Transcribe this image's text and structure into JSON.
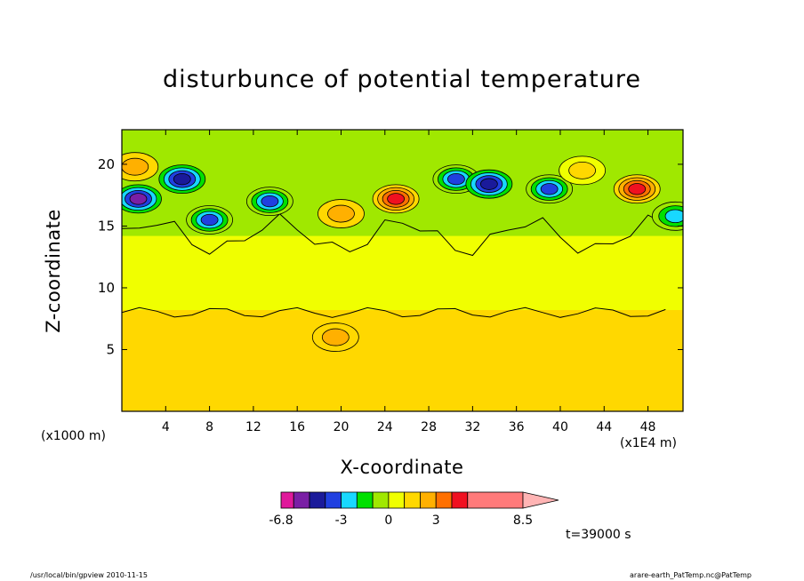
{
  "chart_data": {
    "type": "heatmap",
    "title": "disturbunce of potential temperature",
    "xlabel": "X-coordinate",
    "ylabel": "Z-coordinate",
    "x_unit_left": "(x1000 m)",
    "x_unit_right": "(x1E4 m)",
    "xlim": [
      0,
      51.2
    ],
    "ylim": [
      0,
      22.8
    ],
    "x_ticks": [
      4,
      8,
      12,
      16,
      20,
      24,
      28,
      32,
      36,
      40,
      44,
      48
    ],
    "y_ticks": [
      5,
      10,
      15,
      20
    ],
    "colorbar": {
      "levels": [
        -6.8,
        -6,
        -5,
        -4,
        -3,
        -2,
        -1,
        0,
        1,
        2,
        3,
        4,
        5,
        8.5
      ],
      "tick_labels": [
        "-6.8",
        "-3",
        "0",
        "3",
        "8.5"
      ],
      "tick_values": [
        -6.8,
        -3,
        0,
        3,
        8.5
      ],
      "colors": [
        "#e0199b",
        "#7a1fa5",
        "#1a1a9a",
        "#2040e0",
        "#18d8ff",
        "#00e000",
        "#a0e800",
        "#f0ff00",
        "#ffd800",
        "#ffb000",
        "#ff7000",
        "#f01020",
        "#ff7a7a"
      ],
      "extend_color": "#ffb4b4"
    },
    "regions": {
      "boundary_layer_top": 8.2,
      "stratosphere_base": 14.2,
      "top_margin": 22.8
    },
    "features": [
      {
        "x": 1.5,
        "z": 17.2,
        "value": -5.2
      },
      {
        "x": 5.5,
        "z": 18.8,
        "value": -4.5
      },
      {
        "x": 13.5,
        "z": 17.0,
        "value": -4.0
      },
      {
        "x": 8.0,
        "z": 15.5,
        "value": -3.5
      },
      {
        "x": 30.5,
        "z": 18.8,
        "value": -4.0
      },
      {
        "x": 33.5,
        "z": 18.4,
        "value": -4.3
      },
      {
        "x": 39.0,
        "z": 18.0,
        "value": -3.6
      },
      {
        "x": 50.5,
        "z": 15.8,
        "value": -2.5
      },
      {
        "x": 25.0,
        "z": 17.2,
        "value": 4.2
      },
      {
        "x": 47.0,
        "z": 18.0,
        "value": 4.0
      },
      {
        "x": 1.2,
        "z": 19.8,
        "value": 2.2
      },
      {
        "x": 19.5,
        "z": 6.0,
        "value": 2.2
      },
      {
        "x": 20.0,
        "z": 16.0,
        "value": 2.0
      },
      {
        "x": 42.0,
        "z": 19.5,
        "value": 1.6
      }
    ]
  },
  "labels": {
    "time": "t=39000 s",
    "footer_left": "/usr/local/bin/gpview  2010-11-15",
    "footer_right": "arare-earth_PatTemp.nc@PatTemp"
  }
}
